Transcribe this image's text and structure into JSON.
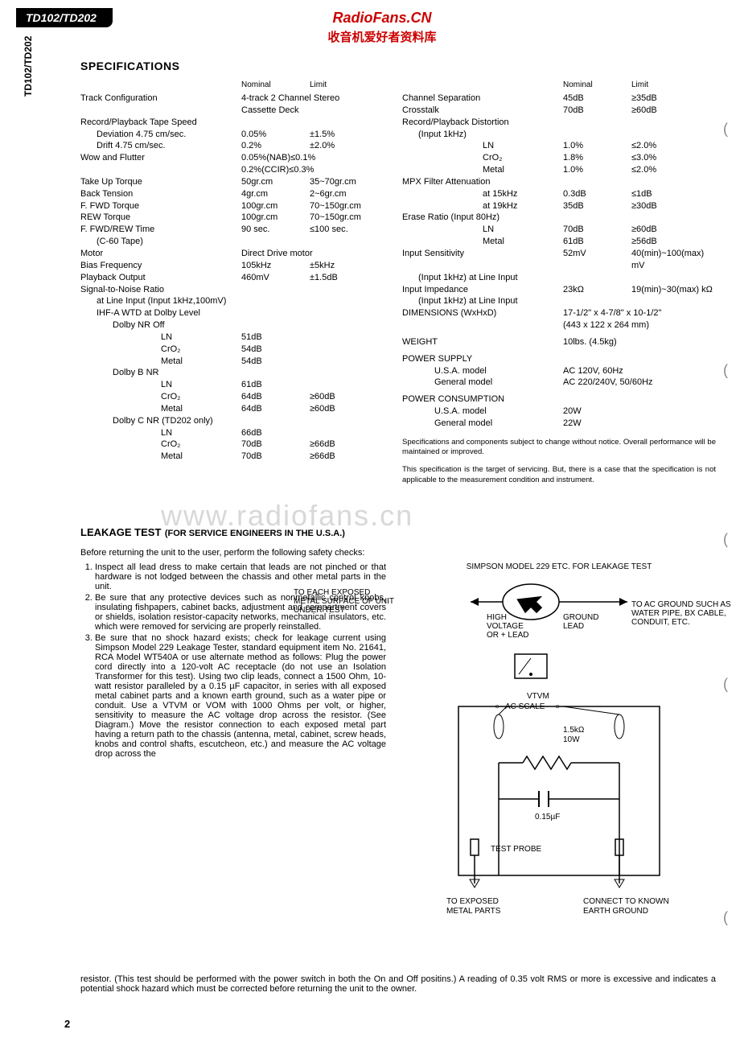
{
  "model_tab": "TD102/TD202",
  "side_label": "TD102/TD202",
  "brand": {
    "name": "RadioFans.CN",
    "sub": "收音机爱好者资料库"
  },
  "section_title": "SPECIFICATIONS",
  "col_headers": {
    "nominal": "Nominal",
    "limit": "Limit"
  },
  "left_specs": [
    {
      "label": "Track Configuration",
      "nom": "",
      "merged": "4-track 2 Channel Stereo"
    },
    {
      "label": "",
      "nom": "",
      "merged": "Cassette Deck"
    },
    {
      "label": "Record/Playback Tape Speed",
      "nom": "",
      "lim": ""
    },
    {
      "label": "Deviation 4.75 cm/sec.",
      "indent": 1,
      "nom": "0.05%",
      "lim": "±1.5%"
    },
    {
      "label": "Drift 4.75 cm/sec.",
      "indent": 1,
      "nom": "0.2%",
      "lim": "±2.0%"
    },
    {
      "label": "Wow and Flutter",
      "nom": "",
      "merged": "0.05%(NAB)≤0.1%"
    },
    {
      "label": "",
      "nom": "",
      "merged": "0.2%(CCIR)≤0.3%"
    },
    {
      "label": "Take Up Torque",
      "nom": "50gr.cm",
      "lim": "35~70gr.cm"
    },
    {
      "label": "Back Tension",
      "nom": "4gr.cm",
      "lim": "2~6gr.cm"
    },
    {
      "label": "F. FWD Torque",
      "nom": "100gr.cm",
      "lim": "70~150gr.cm"
    },
    {
      "label": "REW Torque",
      "nom": "100gr.cm",
      "lim": "70~150gr.cm"
    },
    {
      "label": "F. FWD/REW Time",
      "nom": "90 sec.",
      "lim": "≤100 sec."
    },
    {
      "label": "(C-60 Tape)",
      "indent": 1,
      "nom": "",
      "lim": ""
    },
    {
      "label": "Motor",
      "nom": "",
      "merged": "Direct Drive motor"
    },
    {
      "label": "Bias Frequency",
      "nom": "105kHz",
      "lim": "±5kHz"
    },
    {
      "label": "Playback Output",
      "nom": "460mV",
      "lim": "±1.5dB"
    },
    {
      "label": "Signal-to-Noise Ratio",
      "nom": "",
      "lim": ""
    },
    {
      "label": "at Line Input (Input 1kHz,100mV)",
      "indent": 1,
      "nom": "",
      "lim": ""
    },
    {
      "label": "IHF-A WTD at Dolby Level",
      "indent": 1,
      "nom": "",
      "lim": ""
    },
    {
      "label": "Dolby NR Off",
      "indent": 2,
      "nom": "",
      "lim": ""
    },
    {
      "label": "LN",
      "indent": 4,
      "nom": "51dB",
      "lim": ""
    },
    {
      "label": "CrO₂",
      "indent": 4,
      "nom": "54dB",
      "lim": ""
    },
    {
      "label": "Metal",
      "indent": 4,
      "nom": "54dB",
      "lim": ""
    },
    {
      "label": "Dolby B NR",
      "indent": 2,
      "nom": "",
      "lim": ""
    },
    {
      "label": "LN",
      "indent": 4,
      "nom": "61dB",
      "lim": ""
    },
    {
      "label": "CrO₂",
      "indent": 4,
      "nom": "64dB",
      "lim": "≥60dB"
    },
    {
      "label": "Metal",
      "indent": 4,
      "nom": "64dB",
      "lim": "≥60dB"
    },
    {
      "label": "Dolby C NR (TD202 only)",
      "indent": 2,
      "nom": "",
      "lim": ""
    },
    {
      "label": "LN",
      "indent": 4,
      "nom": "66dB",
      "lim": ""
    },
    {
      "label": "CrO₂",
      "indent": 4,
      "nom": "70dB",
      "lim": "≥66dB"
    },
    {
      "label": "Metal",
      "indent": 4,
      "nom": "70dB",
      "lim": "≥66dB"
    }
  ],
  "right_specs": [
    {
      "label": "Channel Separation",
      "nom": "45dB",
      "lim": "≥35dB"
    },
    {
      "label": "Crosstalk",
      "nom": "70dB",
      "lim": "≥60dB"
    },
    {
      "label": "Record/Playback Distortion",
      "nom": "",
      "lim": ""
    },
    {
      "label": "(Input 1kHz)",
      "indent": 1,
      "nom": "",
      "lim": ""
    },
    {
      "label": "LN",
      "indent": 4,
      "nom": "1.0%",
      "lim": "≤2.0%"
    },
    {
      "label": "CrO₂",
      "indent": 4,
      "nom": "1.8%",
      "lim": "≤3.0%"
    },
    {
      "label": "Metal",
      "indent": 4,
      "nom": "1.0%",
      "lim": "≤2.0%"
    },
    {
      "label": "MPX Filter Attenuation",
      "nom": "",
      "lim": ""
    },
    {
      "label": "at 15kHz",
      "indent": 4,
      "nom": "0.3dB",
      "lim": "≤1dB"
    },
    {
      "label": "at 19kHz",
      "indent": 4,
      "nom": "35dB",
      "lim": "≥30dB"
    },
    {
      "label": "Erase Ratio (Input 80Hz)",
      "nom": "",
      "lim": ""
    },
    {
      "label": "LN",
      "indent": 4,
      "nom": "70dB",
      "lim": "≥60dB"
    },
    {
      "label": "Metal",
      "indent": 4,
      "nom": "61dB",
      "lim": "≥56dB"
    },
    {
      "label": "Input Sensitivity",
      "nom": "52mV",
      "lim": "40(min)~100(max) mV"
    },
    {
      "label": "(Input 1kHz) at Line Input",
      "indent": 1,
      "nom": "",
      "lim": ""
    },
    {
      "label": "Input Impedance",
      "nom": "23kΩ",
      "lim": "19(min)~30(max) kΩ"
    },
    {
      "label": "(Input 1kHz) at Line Input",
      "indent": 1,
      "nom": "",
      "lim": ""
    },
    {
      "label": "DIMENSIONS (WxHxD)",
      "nom": "",
      "merged": "17-1/2\" x 4-7/8\" x 10-1/2\""
    },
    {
      "label": "",
      "nom": "",
      "merged": "(443 x 122 x 264 mm)"
    },
    {
      "label": "WEIGHT",
      "nom": "",
      "merged": "10lbs. (4.5kg)",
      "gap_before": true
    },
    {
      "label": "POWER SUPPLY",
      "nom": "",
      "lim": "",
      "gap_before": true
    },
    {
      "label": "U.S.A. model",
      "indent": 2,
      "nom": "",
      "merged": "AC 120V, 60Hz"
    },
    {
      "label": "General model",
      "indent": 2,
      "nom": "",
      "merged": "AC 220/240V, 50/60Hz"
    },
    {
      "label": "POWER CONSUMPTION",
      "nom": "",
      "lim": "",
      "gap_before": true
    },
    {
      "label": "U.S.A. model",
      "indent": 2,
      "nom": "20W",
      "lim": ""
    },
    {
      "label": "General model",
      "indent": 2,
      "nom": "22W",
      "lim": ""
    }
  ],
  "footnote1": "Specifications and components subject to change without notice. Overall performance will be maintained or improved.",
  "footnote2": "This specification is the target of servicing. But, there is a case that the specification is not applicable to the measurement condition and instrument.",
  "watermark": "www.radiofans.cn",
  "leakage": {
    "title": "LEAKAGE TEST",
    "sub": "(FOR SERVICE ENGINEERS IN THE U.S.A.)",
    "intro": "Before returning the unit to the user, perform the following safety checks:",
    "items": [
      "Inspect all lead dress to make certain that leads are not pinched or that hardware is not lodged between the chassis and other metal parts in the unit.",
      "Be sure that any protective devices such as nonmetallic control knobs, insulating fishpapers, cabinet backs, adjustment and compartment covers or shields, isolation resistor-capacity networks, mechanical insulators, etc. which were removed for servicing are properly reinstalled.",
      "Be sure that no shock hazard exists; check for leakage current using Simpson Model 229 Leakage Tester, standard equipment item No. 21641, RCA Model WT540A or use alternate method as follows:\nPlug the power cord directly into a 120-volt AC receptacle (do not use an Isolation Transformer for this test). Using two clip leads, connect a 1500 Ohm, 10-watt resistor paralleled by a 0.15 µF capacitor, in series with all exposed metal cabinet parts and a known earth ground, such as a water pipe or conduit. Use a VTVM or VOM with 1000 Ohms per volt, or higher, sensitivity to measure the AC voltage drop across the resistor. (See Diagram.) Move the resistor connection to each exposed metal part having a return path to the chassis (antenna, metal, cabinet, screw heads, knobs and control shafts, escutcheon, etc.) and measure the AC voltage drop across the"
    ],
    "after": "resistor. (This test should be performed with the power switch in both the On and Off positins.)\nA reading of 0.35 volt RMS or more is excessive and indicates a potential shock hazard which must be corrected before returning the unit to the owner.",
    "diagram": {
      "title": "SIMPSON MODEL 229 ETC. FOR LEAKAGE TEST",
      "left_label": "TO EACH EXPOSED METAL SURFACE OF UNIT UNDER TEST",
      "right_label": "TO AC GROUND SUCH AS WATER PIPE, BX CABLE, CONDUIT, ETC.",
      "hv_label": "HIGH VOLTAGE OR + LEAD",
      "gnd_label": "GROUND LEAD",
      "vtvm": "VTVM",
      "acscale": "AC SCALE",
      "res": "1.5kΩ 10W",
      "cap": "0.15µF",
      "probe": "TEST PROBE",
      "bottom_left": "TO EXPOSED METAL PARTS",
      "bottom_right": "CONNECT TO KNOWN EARTH GROUND"
    }
  },
  "page_num": "2"
}
